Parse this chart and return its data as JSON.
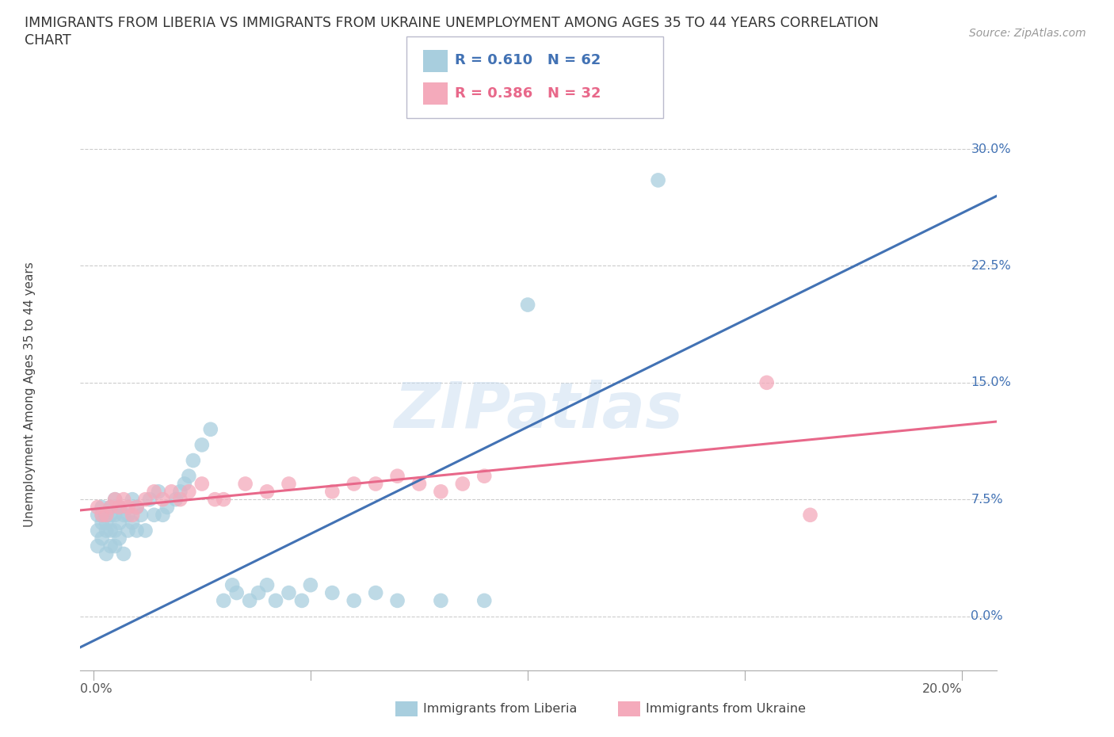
{
  "title_line1": "IMMIGRANTS FROM LIBERIA VS IMMIGRANTS FROM UKRAINE UNEMPLOYMENT AMONG AGES 35 TO 44 YEARS CORRELATION",
  "title_line2": "CHART",
  "source": "Source: ZipAtlas.com",
  "ylabel": "Unemployment Among Ages 35 to 44 years",
  "ytick_labels": [
    "0.0%",
    "7.5%",
    "15.0%",
    "22.5%",
    "30.0%"
  ],
  "ytick_values": [
    0.0,
    0.075,
    0.15,
    0.225,
    0.3
  ],
  "xlim": [
    -0.003,
    0.208
  ],
  "ylim": [
    -0.035,
    0.32
  ],
  "watermark": "ZIPatlas",
  "liberia_color": "#A8CEDE",
  "ukraine_color": "#F4AABB",
  "liberia_line_color": "#4272B4",
  "ukraine_line_color": "#E8688A",
  "R_liberia": 0.61,
  "N_liberia": 62,
  "R_ukraine": 0.386,
  "N_ukraine": 32,
  "liberia_label": "Immigrants from Liberia",
  "ukraine_label": "Immigrants from Ukraine",
  "liberia_x": [
    0.001,
    0.001,
    0.001,
    0.002,
    0.002,
    0.002,
    0.002,
    0.003,
    0.003,
    0.003,
    0.003,
    0.004,
    0.004,
    0.004,
    0.004,
    0.005,
    0.005,
    0.005,
    0.005,
    0.006,
    0.006,
    0.006,
    0.007,
    0.007,
    0.008,
    0.008,
    0.009,
    0.009,
    0.01,
    0.01,
    0.011,
    0.012,
    0.013,
    0.014,
    0.015,
    0.016,
    0.017,
    0.019,
    0.02,
    0.021,
    0.022,
    0.023,
    0.025,
    0.027,
    0.03,
    0.032,
    0.033,
    0.036,
    0.038,
    0.04,
    0.042,
    0.045,
    0.048,
    0.05,
    0.055,
    0.06,
    0.065,
    0.07,
    0.08,
    0.09,
    0.1,
    0.13
  ],
  "liberia_y": [
    0.065,
    0.055,
    0.045,
    0.07,
    0.065,
    0.06,
    0.05,
    0.065,
    0.06,
    0.055,
    0.04,
    0.07,
    0.065,
    0.055,
    0.045,
    0.075,
    0.065,
    0.055,
    0.045,
    0.07,
    0.06,
    0.05,
    0.065,
    0.04,
    0.065,
    0.055,
    0.075,
    0.06,
    0.07,
    0.055,
    0.065,
    0.055,
    0.075,
    0.065,
    0.08,
    0.065,
    0.07,
    0.075,
    0.08,
    0.085,
    0.09,
    0.1,
    0.11,
    0.12,
    0.01,
    0.02,
    0.015,
    0.01,
    0.015,
    0.02,
    0.01,
    0.015,
    0.01,
    0.02,
    0.015,
    0.01,
    0.015,
    0.01,
    0.01,
    0.01,
    0.2,
    0.28
  ],
  "ukraine_x": [
    0.001,
    0.002,
    0.003,
    0.004,
    0.005,
    0.006,
    0.007,
    0.008,
    0.009,
    0.01,
    0.012,
    0.014,
    0.016,
    0.018,
    0.02,
    0.022,
    0.025,
    0.028,
    0.03,
    0.035,
    0.04,
    0.045,
    0.055,
    0.06,
    0.065,
    0.07,
    0.075,
    0.08,
    0.085,
    0.09,
    0.155,
    0.165
  ],
  "ukraine_y": [
    0.07,
    0.065,
    0.065,
    0.07,
    0.075,
    0.07,
    0.075,
    0.07,
    0.065,
    0.07,
    0.075,
    0.08,
    0.075,
    0.08,
    0.075,
    0.08,
    0.085,
    0.075,
    0.075,
    0.085,
    0.08,
    0.085,
    0.08,
    0.085,
    0.085,
    0.09,
    0.085,
    0.08,
    0.085,
    0.09,
    0.15,
    0.065
  ],
  "liberia_line_x": [
    -0.003,
    0.208
  ],
  "liberia_line_y": [
    -0.02,
    0.27
  ],
  "ukraine_line_x": [
    -0.003,
    0.208
  ],
  "ukraine_line_y": [
    0.068,
    0.125
  ]
}
